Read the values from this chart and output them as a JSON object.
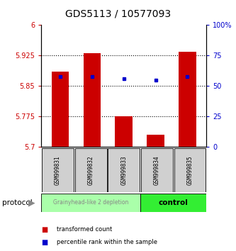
{
  "title": "GDS5113 / 10577093",
  "samples": [
    "GSM999831",
    "GSM999832",
    "GSM999833",
    "GSM999834",
    "GSM999835"
  ],
  "bar_values": [
    5.885,
    5.93,
    5.775,
    5.73,
    5.935
  ],
  "bar_baseline": 5.7,
  "percentile_values": [
    58,
    58,
    56,
    55,
    58
  ],
  "ylim_left": [
    5.7,
    6.0
  ],
  "ylim_right": [
    0,
    100
  ],
  "yticks_left": [
    5.7,
    5.775,
    5.85,
    5.925,
    6.0
  ],
  "ytick_labels_left": [
    "5.7",
    "5.775",
    "5.85",
    "5.925",
    "6"
  ],
  "yticks_right": [
    0,
    25,
    50,
    75,
    100
  ],
  "ytick_labels_right": [
    "0",
    "25",
    "50",
    "75",
    "100%"
  ],
  "bar_color": "#cc0000",
  "percentile_color": "#0000cc",
  "groups": [
    {
      "label": "Grainyhead-like 2 depletion",
      "n_samples": 3,
      "color": "#aaffaa",
      "text_color": "#888888",
      "text_size": 5.5,
      "text_bold": false
    },
    {
      "label": "control",
      "n_samples": 2,
      "color": "#33ee33",
      "text_color": "#000000",
      "text_size": 7.5,
      "text_bold": true
    }
  ],
  "protocol_label": "protocol",
  "legend_items": [
    {
      "label": "transformed count",
      "color": "#cc0000"
    },
    {
      "label": "percentile rank within the sample",
      "color": "#0000cc"
    }
  ],
  "background_color": "#ffffff",
  "title_fontsize": 10,
  "tick_fontsize": 7,
  "sample_fontsize": 5.5,
  "bar_width": 0.55
}
